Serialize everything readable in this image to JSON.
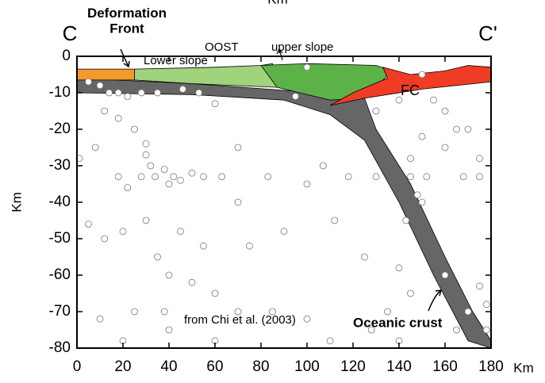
{
  "chart_data": {
    "type": "scatter",
    "top_label": "Km",
    "x_label": "Km",
    "y_label": "Km",
    "annotations": [
      "C",
      "C'",
      "Deformation\nFront",
      "OOST",
      "upper slope",
      "Lower slope",
      "FC",
      "from Chi et al. (2003)",
      "Oceanic crust"
    ],
    "xlim": [
      0,
      180
    ],
    "ylim": [
      -80,
      0
    ],
    "xticks": [
      0,
      20,
      40,
      60,
      80,
      100,
      120,
      140,
      160,
      180
    ],
    "yticks": [
      0,
      -10,
      -20,
      -30,
      -40,
      -50,
      -60,
      -70,
      -80
    ],
    "shapes": [
      {
        "color": "#666666",
        "x": [
          0,
          50,
          105,
          125,
          130,
          145,
          160,
          172,
          180,
          180,
          170,
          155,
          140,
          125,
          110,
          90,
          50,
          0
        ],
        "y": [
          -6,
          -7.5,
          -10,
          -11.5,
          -20,
          -35,
          -55,
          -70,
          -78,
          -80,
          -78,
          -60,
          -40,
          -23,
          -16,
          -12,
          -10.5,
          -10
        ]
      },
      {
        "color": "#9fd37c",
        "x": [
          25,
          60,
          80,
          85,
          87,
          50,
          25
        ],
        "y": [
          -3.5,
          -3,
          -2.5,
          -2,
          -8.5,
          -7.5,
          -6.5
        ]
      },
      {
        "color": "#5cb247",
        "x": [
          80,
          100,
          130,
          137,
          125,
          110,
          87
        ],
        "y": [
          -2.5,
          -2,
          -2.5,
          -4,
          -11.5,
          -12,
          -8.5
        ]
      },
      {
        "color": "#f03c24",
        "x": [
          133,
          145,
          160,
          170,
          180,
          180,
          150,
          125,
          110,
          120,
          135
        ],
        "y": [
          -3,
          -5,
          -4,
          -2.5,
          -3,
          -7,
          -9,
          -11.5,
          -13.5,
          -10,
          -6
        ]
      },
      {
        "color": "#f39a2c",
        "x": [
          0,
          25,
          25,
          0
        ],
        "y": [
          -3.5,
          -3.5,
          -6.5,
          -6.5
        ]
      }
    ],
    "x": [
      5,
      10,
      14,
      18,
      22,
      28,
      35,
      46,
      53,
      95,
      60,
      12,
      18,
      25,
      30,
      30,
      32,
      34,
      28,
      38,
      40,
      42,
      45,
      8,
      1,
      18,
      22,
      50,
      55,
      63,
      70,
      83,
      107,
      118,
      130,
      145,
      152,
      168,
      175,
      145,
      150,
      160,
      170,
      175,
      150,
      143,
      148,
      112,
      125,
      140,
      160,
      175,
      178,
      170,
      165,
      178,
      145,
      135,
      128,
      100,
      110,
      85,
      70,
      60,
      50,
      40,
      38,
      25,
      10,
      20,
      5,
      12,
      20,
      30,
      35,
      45,
      55,
      75,
      90,
      70,
      100,
      130,
      140,
      155,
      160,
      165,
      150,
      100,
      40,
      60,
      140
    ],
    "y": [
      -7,
      -8,
      -10,
      -10,
      -11,
      -10,
      -10,
      -9,
      -10,
      -11,
      -13,
      -15,
      -17,
      -20,
      -24,
      -27,
      -30,
      -33,
      -33,
      -31,
      -35,
      -33,
      -34,
      -25,
      -28,
      -33,
      -36,
      -32,
      -33,
      -33,
      -25,
      -33,
      -30,
      -33,
      -33,
      -33,
      -33,
      -33,
      -33,
      -28,
      -22,
      -25,
      -20,
      -28,
      -40,
      -45,
      -38,
      -45,
      -55,
      -58,
      -60,
      -63,
      -68,
      -70,
      -75,
      -75,
      -65,
      -70,
      -75,
      -72,
      -78,
      -70,
      -70,
      -65,
      -62,
      -60,
      -70,
      -70,
      -72,
      -78,
      -46,
      -50,
      -48,
      -45,
      -55,
      -48,
      -52,
      -52,
      -48,
      -40,
      -35,
      -15,
      -12,
      -12,
      -15,
      -20,
      -5,
      -3,
      -75,
      -78,
      -78
    ]
  }
}
